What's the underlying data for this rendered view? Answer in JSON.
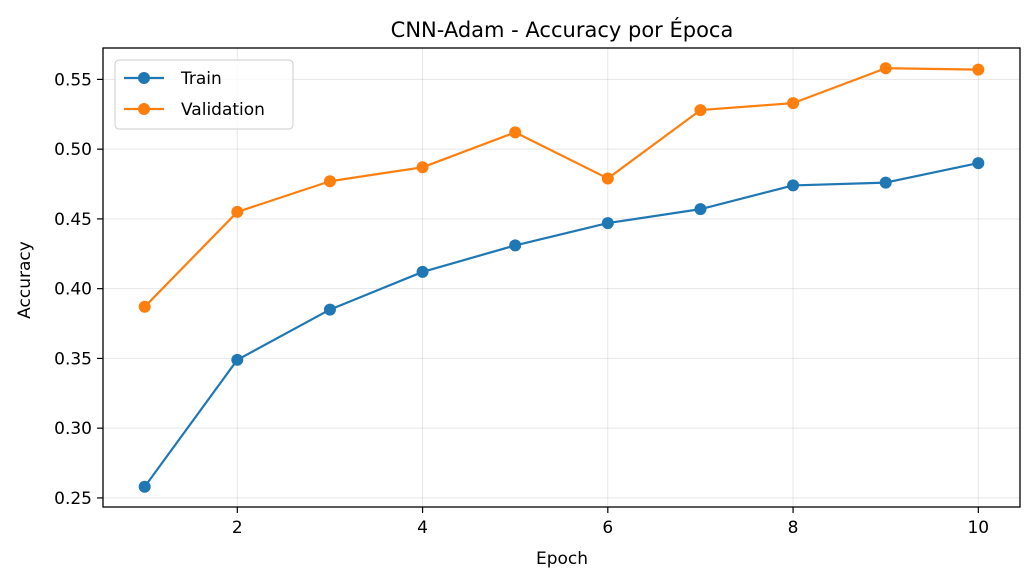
{
  "chart_data": {
    "type": "line",
    "title": "CNN-Adam - Accuracy por Época",
    "xlabel": "Epoch",
    "ylabel": "Accuracy",
    "x": [
      1,
      2,
      3,
      4,
      5,
      6,
      7,
      8,
      9,
      10
    ],
    "xlim": [
      0.55,
      10.45
    ],
    "ylim": [
      0.2435,
      0.5725
    ],
    "xticks": [
      2,
      4,
      6,
      8,
      10
    ],
    "yticks": [
      0.25,
      0.3,
      0.35,
      0.4,
      0.45,
      0.5,
      0.55
    ],
    "ytick_labels": [
      "0.25",
      "0.30",
      "0.35",
      "0.40",
      "0.45",
      "0.50",
      "0.55"
    ],
    "grid": true,
    "legend": "upper-left",
    "series": [
      {
        "name": "Train",
        "color": "#1f77b4",
        "marker": "circle",
        "values": [
          0.258,
          0.349,
          0.385,
          0.412,
          0.431,
          0.447,
          0.457,
          0.474,
          0.476,
          0.49
        ]
      },
      {
        "name": "Validation",
        "color": "#ff7f0e",
        "marker": "circle",
        "values": [
          0.387,
          0.455,
          0.477,
          0.487,
          0.512,
          0.479,
          0.528,
          0.533,
          0.558,
          0.557
        ]
      }
    ]
  }
}
